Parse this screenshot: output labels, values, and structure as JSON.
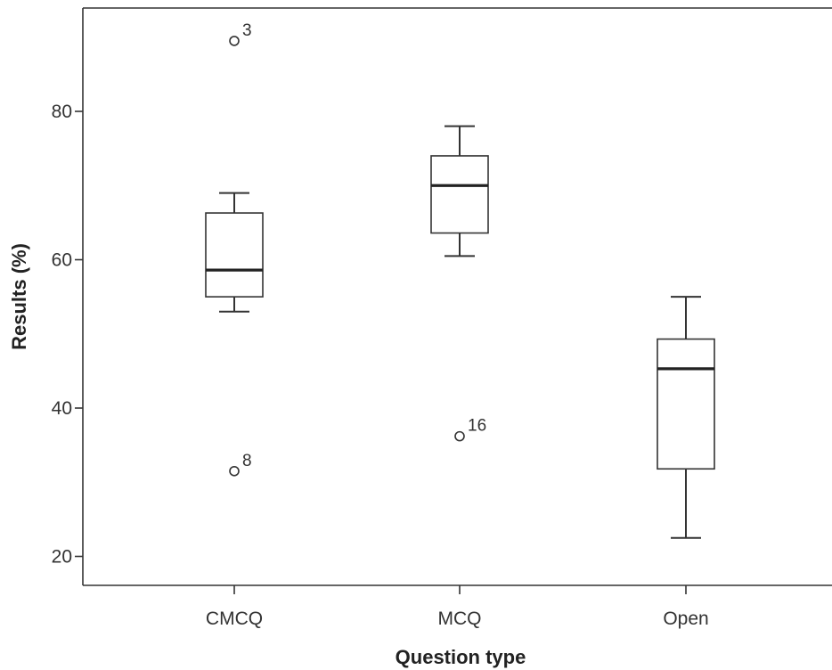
{
  "chart_data": {
    "type": "box",
    "title": "",
    "xlabel": "Question type",
    "ylabel": "Results (%)",
    "categories": [
      "CMCQ",
      "MCQ",
      "Open"
    ],
    "ylim": [
      16,
      94
    ],
    "yticks": [
      20,
      40,
      60,
      80
    ],
    "grid": false,
    "boxes": [
      {
        "category": "CMCQ",
        "whisker_low": 53,
        "q1": 55,
        "median": 58.6,
        "q3": 66.3,
        "whisker_high": 69,
        "outliers": [
          {
            "value": 89.5,
            "label": "3"
          },
          {
            "value": 31.5,
            "label": "8"
          }
        ]
      },
      {
        "category": "MCQ",
        "whisker_low": 60.5,
        "q1": 63.6,
        "median": 70,
        "q3": 74,
        "whisker_high": 78,
        "outliers": [
          {
            "value": 36.2,
            "label": "16"
          }
        ]
      },
      {
        "category": "Open",
        "whisker_low": 22.5,
        "q1": 31.8,
        "median": 45.3,
        "q3": 49.3,
        "whisker_high": 55,
        "outliers": []
      }
    ]
  }
}
